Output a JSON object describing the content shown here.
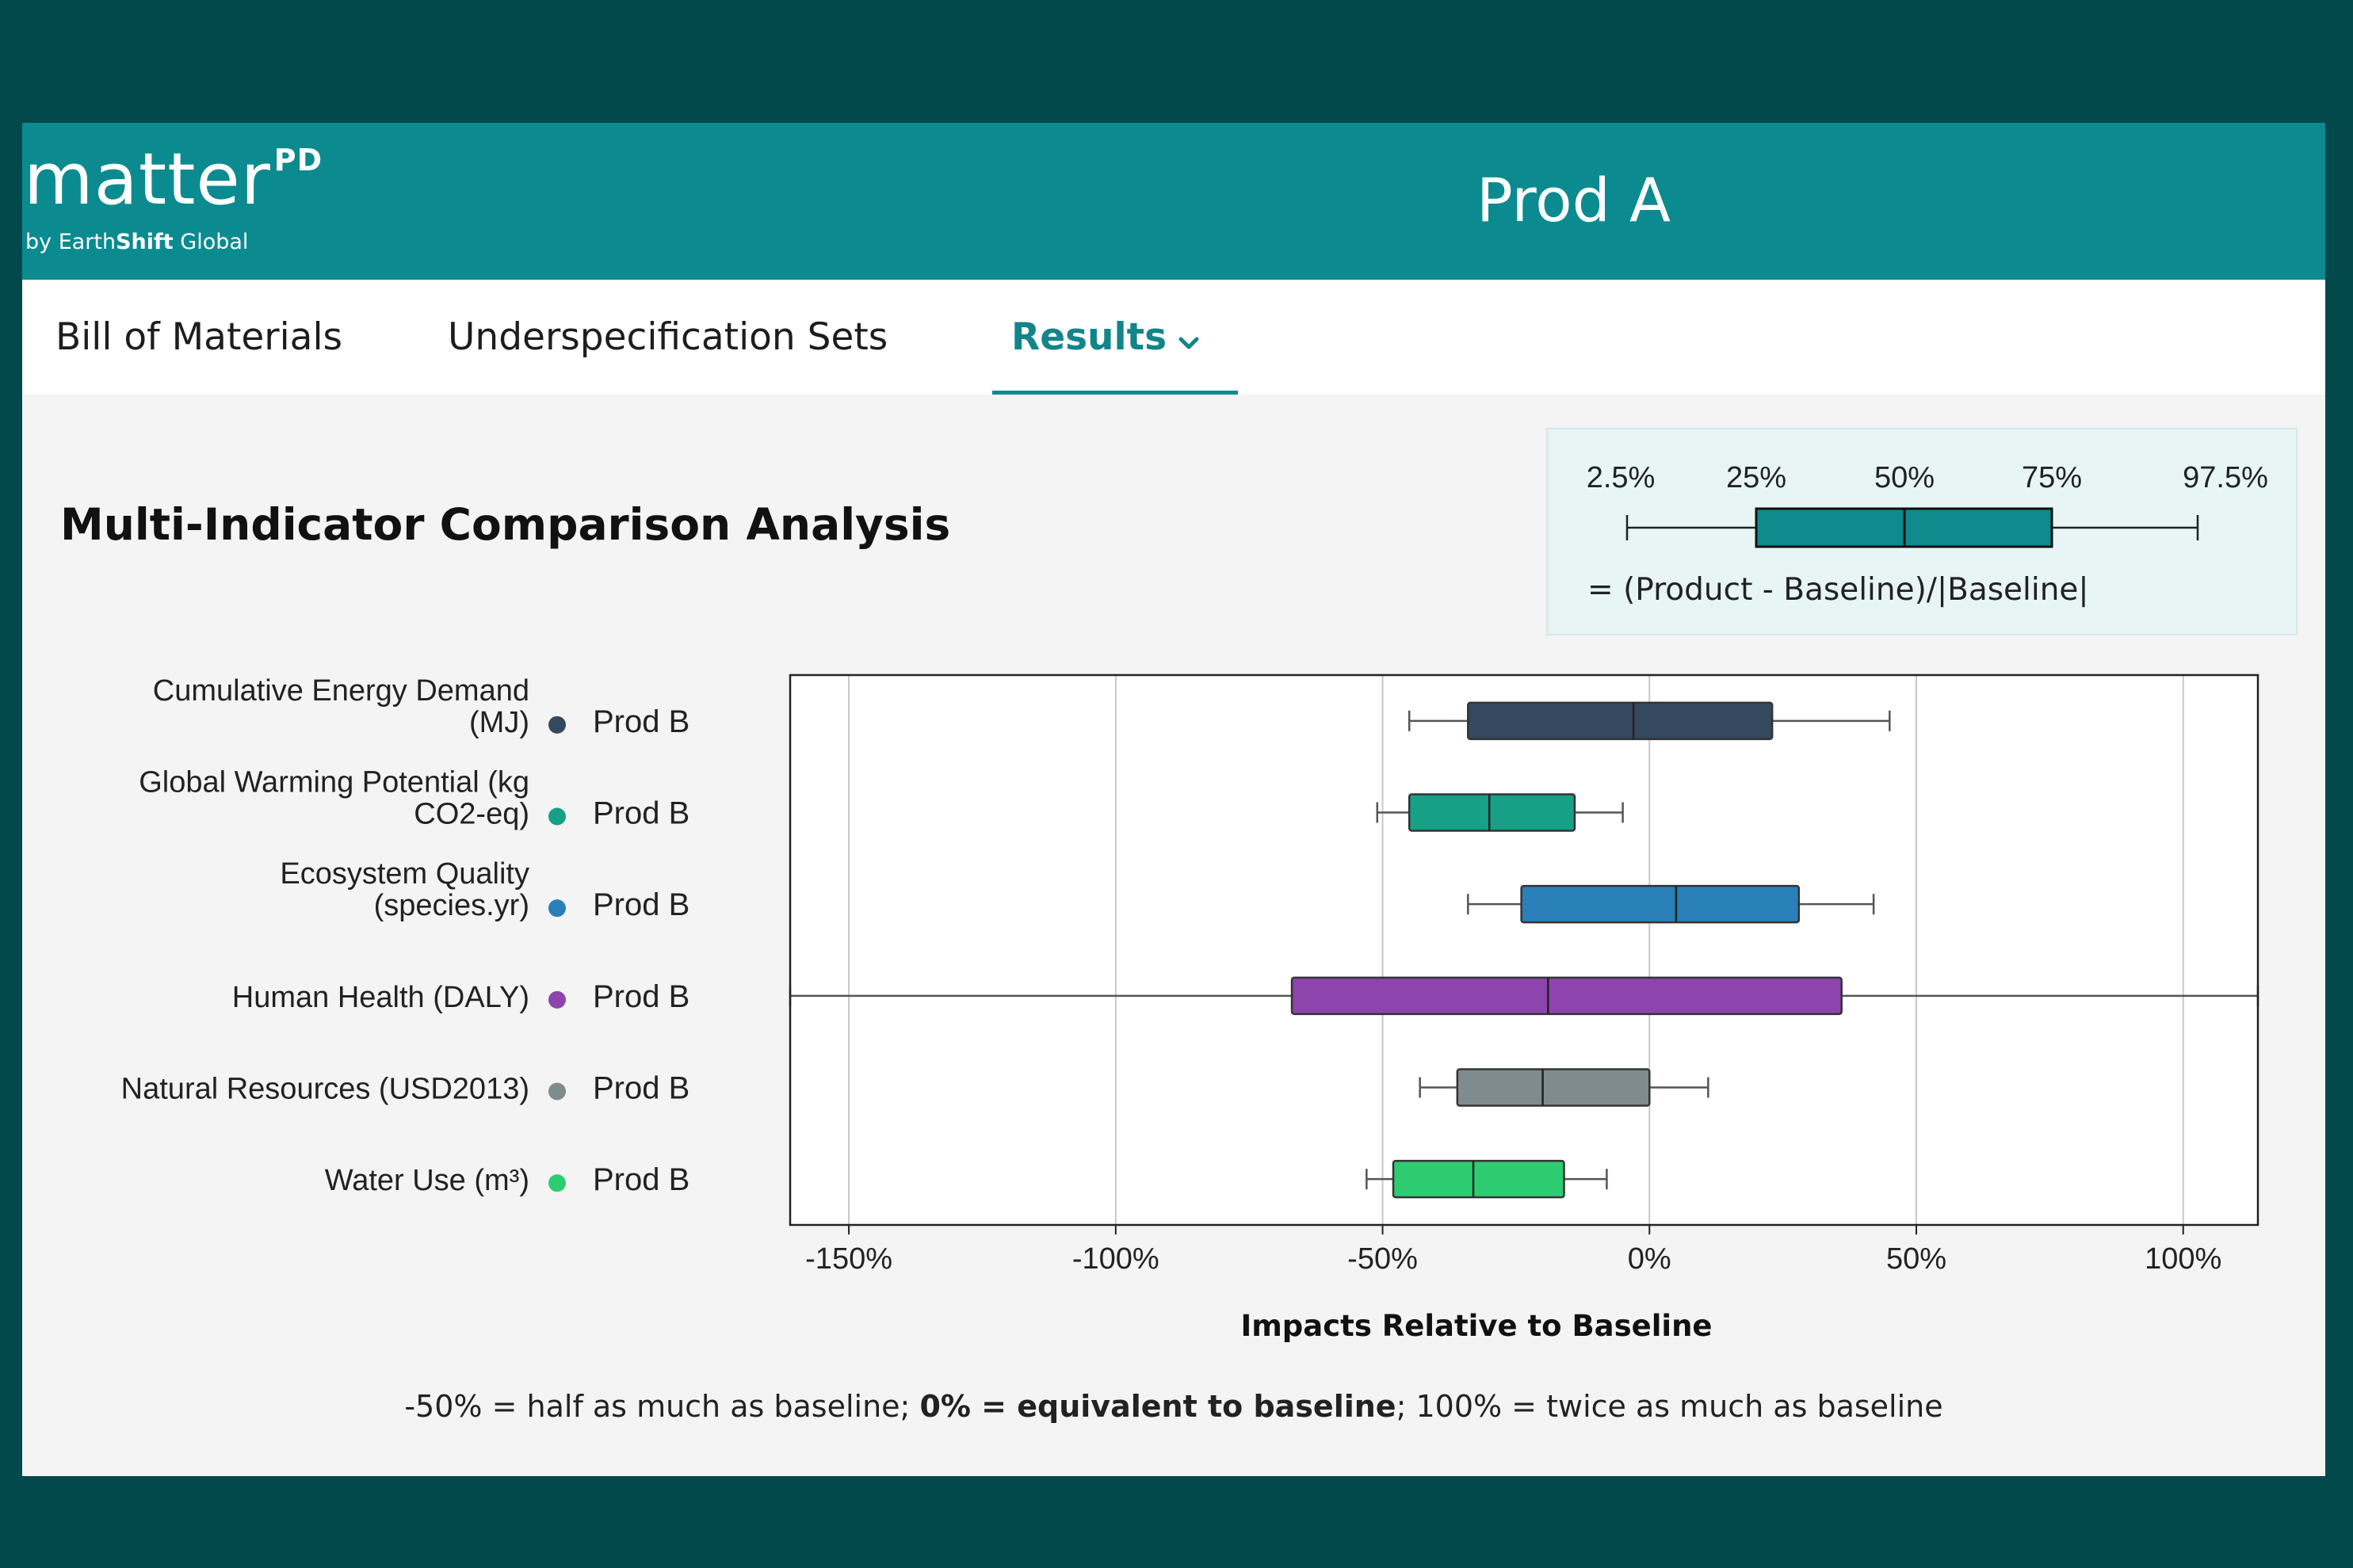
{
  "app": {
    "logo_word": "matter",
    "logo_sup": "PD",
    "logo_by_prefix": "by Earth",
    "logo_by_bold": "Shift",
    "logo_by_suffix": " Global",
    "product_title": "Prod A"
  },
  "nav": {
    "tabs": [
      {
        "label": "Bill of Materials"
      },
      {
        "label": "Underspecification Sets"
      },
      {
        "label": "Results",
        "active": true
      }
    ]
  },
  "main": {
    "title": "Multi-Indicator Comparison Analysis",
    "legend": {
      "percentiles": [
        "2.5%",
        "25%",
        "50%",
        "75%",
        "97.5%"
      ],
      "formula": "= (Product - Baseline)/|Baseline|"
    },
    "footnote": {
      "part1": "-50% = half as much as baseline; ",
      "part2": "0% = equivalent to baseline",
      "part3": "; 100% = twice as much as baseline"
    }
  },
  "colors": {
    "header": "#0b8b8f",
    "background": "#03484b",
    "legend_box": "#0f8b8d"
  },
  "chart_data": {
    "type": "box",
    "xlabel": "Impacts Relative to Baseline",
    "xlim": [
      -161,
      114
    ],
    "xticks": [
      -150,
      -100,
      -50,
      0,
      50,
      100
    ],
    "xtick_labels": [
      "-150%",
      "-100%",
      "-50%",
      "0%",
      "50%",
      "100%"
    ],
    "grid": "vertical",
    "series": [
      {
        "indicator": [
          "Cumulative Energy Demand",
          "(MJ)"
        ],
        "product": "Prod B",
        "color": "#34495e",
        "p2_5": -45,
        "p25": -34,
        "p50": -3,
        "p75": 23,
        "p97_5": 45
      },
      {
        "indicator": [
          "Global Warming Potential (kg",
          "CO2-eq)"
        ],
        "product": "Prod B",
        "color": "#16a085",
        "p2_5": -51,
        "p25": -45,
        "p50": -30,
        "p75": -14,
        "p97_5": -5
      },
      {
        "indicator": [
          "Ecosystem Quality",
          "(species.yr)"
        ],
        "product": "Prod B",
        "color": "#2980b9",
        "p2_5": -34,
        "p25": -24,
        "p50": 5,
        "p75": 28,
        "p97_5": 42
      },
      {
        "indicator": [
          "Human Health (DALY)"
        ],
        "product": "Prod B",
        "color": "#8e44ad",
        "p2_5": -161,
        "p25": -67,
        "p50": -19,
        "p75": 36,
        "p97_5": 114
      },
      {
        "indicator": [
          "Natural Resources (USD2013)"
        ],
        "product": "Prod B",
        "color": "#7f8c8d",
        "p2_5": -43,
        "p25": -36,
        "p50": -20,
        "p75": 0,
        "p97_5": 11
      },
      {
        "indicator": [
          "Water Use (m³)"
        ],
        "product": "Prod B",
        "color": "#2ecc71",
        "p2_5": -53,
        "p25": -48,
        "p50": -33,
        "p75": -16,
        "p97_5": -8
      }
    ]
  }
}
